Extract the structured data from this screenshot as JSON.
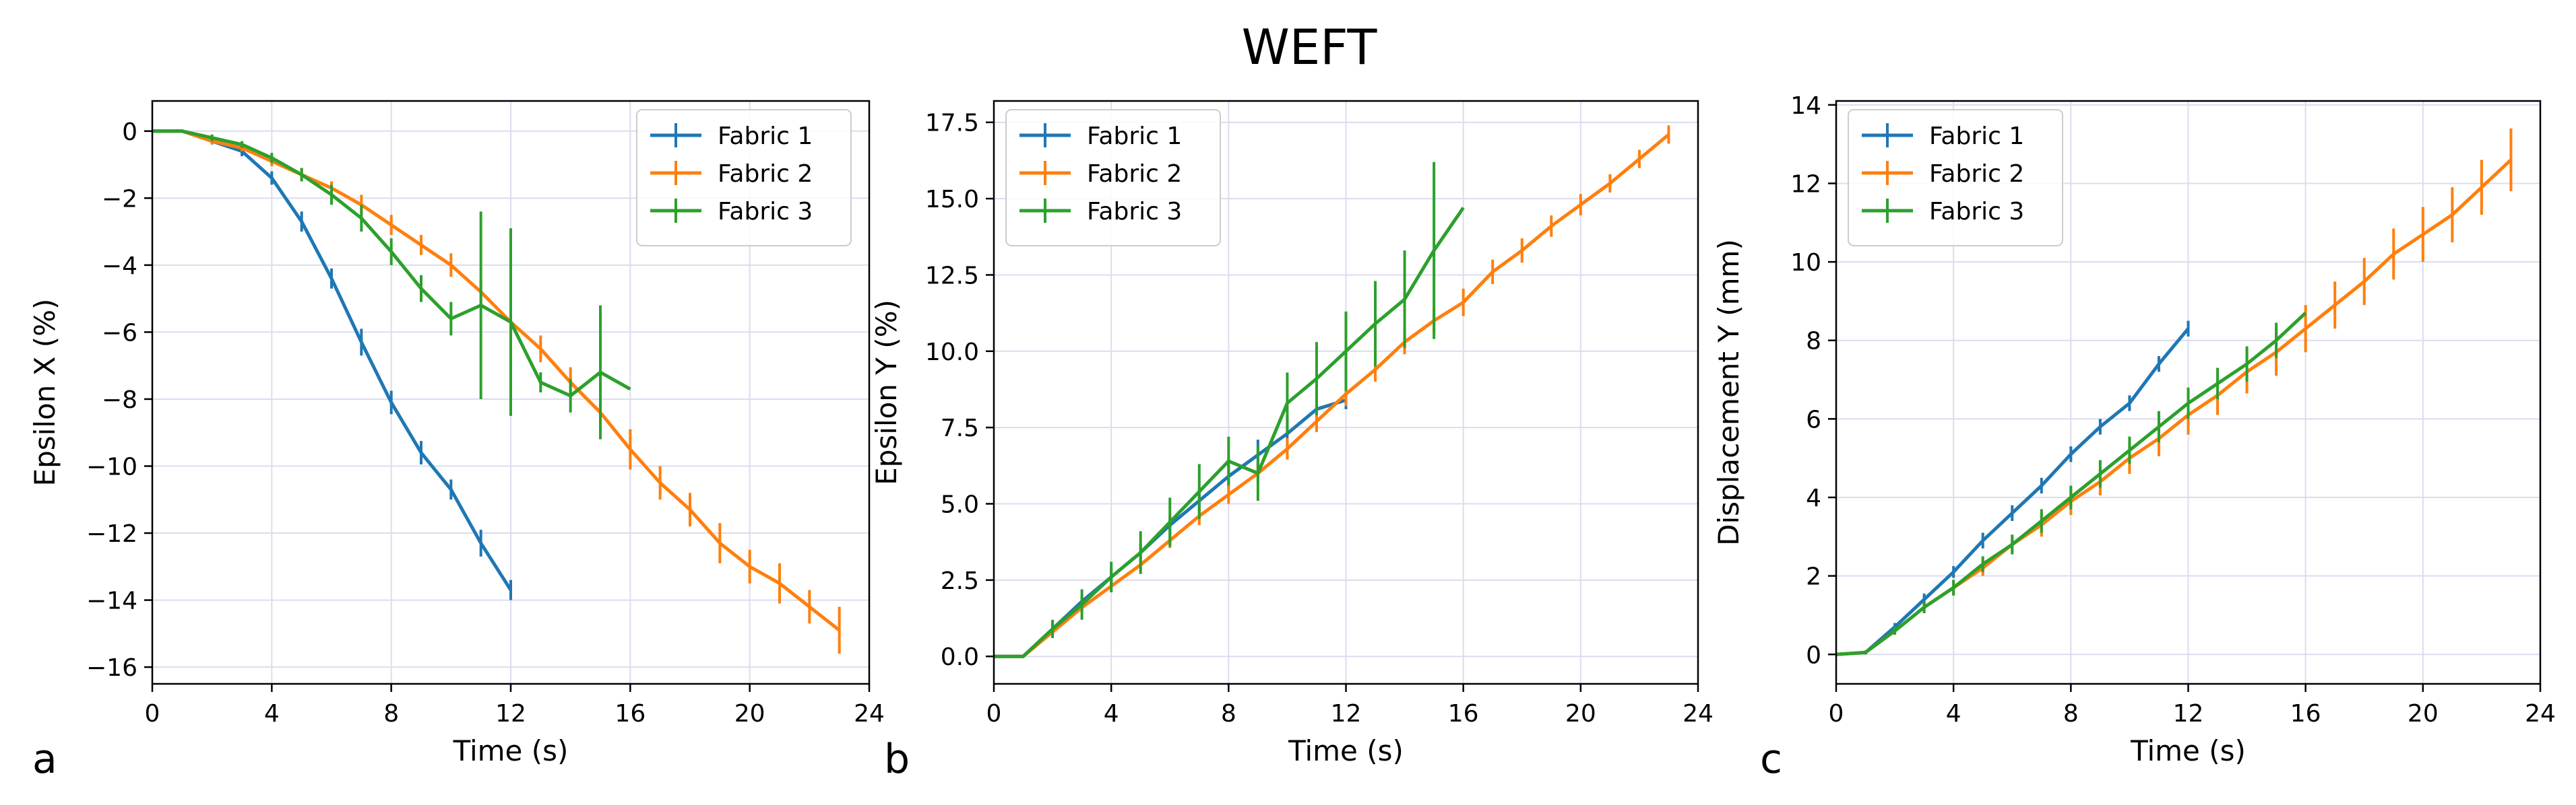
{
  "figure": {
    "title": "WEFT"
  },
  "chart_data": [
    {
      "panel_label": "a",
      "type": "line",
      "xlabel": "Time (s)",
      "ylabel": "Epsilon X (%)",
      "xlim": [
        0,
        24
      ],
      "ylim": [
        -16.5,
        0.9
      ],
      "xticks": [
        0,
        4,
        8,
        12,
        16,
        20,
        24
      ],
      "xtick_labels": [
        "0",
        "4",
        "8",
        "12",
        "16",
        "20",
        "24"
      ],
      "yticks": [
        0,
        -2,
        -4,
        -6,
        -8,
        -10,
        -12,
        -14,
        -16
      ],
      "ytick_labels": [
        "0",
        "−2",
        "−4",
        "−6",
        "−8",
        "−10",
        "−12",
        "−14",
        "−16"
      ],
      "grid": true,
      "legend_position": "top-right",
      "series": [
        {
          "name": "Fabric 1",
          "color": "#1f77b4",
          "x": [
            0,
            1,
            2,
            3,
            4,
            5,
            6,
            7,
            8,
            9,
            10,
            11,
            12
          ],
          "y": [
            0,
            0,
            -0.3,
            -0.6,
            -1.4,
            -2.7,
            -4.4,
            -6.3,
            -8.1,
            -9.6,
            -10.7,
            -12.3,
            -13.7
          ],
          "err": [
            0,
            0,
            0.1,
            0.15,
            0.2,
            0.3,
            0.3,
            0.4,
            0.35,
            0.35,
            0.3,
            0.4,
            0.3
          ]
        },
        {
          "name": "Fabric 2",
          "color": "#ff7f0e",
          "x": [
            0,
            1,
            2,
            3,
            4,
            5,
            6,
            7,
            8,
            9,
            10,
            11,
            12,
            13,
            14,
            15,
            16,
            17,
            18,
            19,
            20,
            21,
            22,
            23
          ],
          "y": [
            0,
            0,
            -0.3,
            -0.5,
            -0.9,
            -1.3,
            -1.7,
            -2.2,
            -2.8,
            -3.4,
            -4.0,
            -4.8,
            -5.7,
            -6.5,
            -7.5,
            -8.4,
            -9.5,
            -10.5,
            -11.3,
            -12.3,
            -13.0,
            -13.5,
            -14.2,
            -14.9
          ],
          "err": [
            0,
            0,
            0.1,
            0.1,
            0.15,
            0.2,
            0.2,
            0.3,
            0.3,
            0.3,
            0.35,
            0.35,
            0.4,
            0.4,
            0.45,
            0.45,
            0.6,
            0.5,
            0.5,
            0.6,
            0.5,
            0.6,
            0.5,
            0.7
          ]
        },
        {
          "name": "Fabric 3",
          "color": "#2ca02c",
          "x": [
            0,
            1,
            2,
            3,
            4,
            5,
            6,
            7,
            8,
            9,
            10,
            11,
            12,
            13,
            14,
            15,
            16
          ],
          "y": [
            0,
            0,
            -0.2,
            -0.4,
            -0.8,
            -1.3,
            -1.9,
            -2.6,
            -3.6,
            -4.7,
            -5.6,
            -5.2,
            -5.7,
            -7.5,
            -7.9,
            -7.2,
            -7.7
          ],
          "err": [
            0,
            0,
            0.1,
            0.1,
            0.15,
            0.2,
            0.3,
            0.4,
            0.4,
            0.4,
            0.5,
            2.8,
            2.8,
            0.3,
            0.5,
            2.0,
            0
          ]
        }
      ]
    },
    {
      "panel_label": "b",
      "type": "line",
      "xlabel": "Time (s)",
      "ylabel": "Epsilon Y (%)",
      "xlim": [
        0,
        24
      ],
      "ylim": [
        -0.9,
        18.2
      ],
      "xticks": [
        0,
        4,
        8,
        12,
        16,
        20,
        24
      ],
      "xtick_labels": [
        "0",
        "4",
        "8",
        "12",
        "16",
        "20",
        "24"
      ],
      "yticks": [
        0,
        2.5,
        5,
        7.5,
        10,
        12.5,
        15,
        17.5
      ],
      "ytick_labels": [
        "0.0",
        "2.5",
        "5.0",
        "7.5",
        "10.0",
        "12.5",
        "15.0",
        "17.5"
      ],
      "grid": true,
      "legend_position": "top-left",
      "series": [
        {
          "name": "Fabric 1",
          "color": "#1f77b4",
          "x": [
            0,
            1,
            2,
            3,
            4,
            5,
            6,
            7,
            8,
            9,
            10,
            11,
            12
          ],
          "y": [
            0,
            0,
            0.9,
            1.8,
            2.6,
            3.4,
            4.3,
            5.1,
            5.9,
            6.6,
            7.3,
            8.1,
            8.4
          ],
          "err": [
            0,
            0,
            0.2,
            0.2,
            0.3,
            0.3,
            0.3,
            0.4,
            0.4,
            0.5,
            0.6,
            0.5,
            0.3
          ]
        },
        {
          "name": "Fabric 2",
          "color": "#ff7f0e",
          "x": [
            0,
            1,
            2,
            3,
            4,
            5,
            6,
            7,
            8,
            9,
            10,
            11,
            12,
            13,
            14,
            15,
            16,
            17,
            18,
            19,
            20,
            21,
            22,
            23
          ],
          "y": [
            0,
            0,
            0.8,
            1.6,
            2.3,
            3.0,
            3.8,
            4.6,
            5.3,
            6.0,
            6.8,
            7.7,
            8.6,
            9.4,
            10.3,
            11.0,
            11.6,
            12.6,
            13.3,
            14.1,
            14.8,
            15.5,
            16.3,
            17.1
          ],
          "err": [
            0,
            0,
            0.1,
            0.15,
            0.2,
            0.2,
            0.25,
            0.3,
            0.3,
            0.3,
            0.35,
            0.35,
            0.4,
            0.4,
            0.4,
            0.4,
            0.45,
            0.4,
            0.4,
            0.35,
            0.35,
            0.3,
            0.3,
            0.3
          ]
        },
        {
          "name": "Fabric 3",
          "color": "#2ca02c",
          "x": [
            0,
            1,
            2,
            3,
            4,
            5,
            6,
            7,
            8,
            9,
            10,
            11,
            12,
            13,
            14,
            15,
            16
          ],
          "y": [
            0,
            0,
            0.9,
            1.7,
            2.6,
            3.4,
            4.4,
            5.4,
            6.4,
            6.0,
            8.3,
            9.1,
            10.0,
            10.9,
            11.7,
            13.3,
            14.7
          ],
          "err": [
            0,
            0,
            0.3,
            0.5,
            0.5,
            0.7,
            0.8,
            0.9,
            0.8,
            0.9,
            1.0,
            1.2,
            1.3,
            1.4,
            1.6,
            2.9,
            0
          ]
        }
      ]
    },
    {
      "panel_label": "c",
      "type": "line",
      "xlabel": "Time (s)",
      "ylabel": "Displacement Y (mm)",
      "xlim": [
        0,
        24
      ],
      "ylim": [
        -0.75,
        14.1
      ],
      "xticks": [
        0,
        4,
        8,
        12,
        16,
        20,
        24
      ],
      "xtick_labels": [
        "0",
        "4",
        "8",
        "12",
        "16",
        "20",
        "24"
      ],
      "yticks": [
        0,
        2,
        4,
        6,
        8,
        10,
        12,
        14
      ],
      "ytick_labels": [
        "0",
        "2",
        "4",
        "6",
        "8",
        "10",
        "12",
        "14"
      ],
      "grid": true,
      "legend_position": "top-left",
      "series": [
        {
          "name": "Fabric 1",
          "color": "#1f77b4",
          "x": [
            0,
            1,
            2,
            3,
            4,
            5,
            6,
            7,
            8,
            9,
            10,
            11,
            12
          ],
          "y": [
            0,
            0.05,
            0.7,
            1.4,
            2.1,
            2.9,
            3.6,
            4.3,
            5.1,
            5.8,
            6.4,
            7.4,
            8.3
          ],
          "err": [
            0,
            0.05,
            0.1,
            0.15,
            0.15,
            0.2,
            0.2,
            0.2,
            0.2,
            0.2,
            0.2,
            0.2,
            0.2
          ]
        },
        {
          "name": "Fabric 2",
          "color": "#ff7f0e",
          "x": [
            0,
            1,
            2,
            3,
            4,
            5,
            6,
            7,
            8,
            9,
            10,
            11,
            12,
            13,
            14,
            15,
            16,
            17,
            18,
            19,
            20,
            21,
            22,
            23
          ],
          "y": [
            0,
            0.05,
            0.6,
            1.2,
            1.7,
            2.2,
            2.8,
            3.3,
            3.9,
            4.4,
            5.0,
            5.5,
            6.1,
            6.6,
            7.2,
            7.7,
            8.3,
            8.9,
            9.5,
            10.2,
            10.7,
            11.2,
            11.9,
            12.6
          ],
          "err": [
            0,
            0.05,
            0.1,
            0.15,
            0.2,
            0.2,
            0.25,
            0.3,
            0.35,
            0.35,
            0.4,
            0.45,
            0.5,
            0.5,
            0.55,
            0.6,
            0.6,
            0.6,
            0.6,
            0.65,
            0.7,
            0.7,
            0.7,
            0.8
          ]
        },
        {
          "name": "Fabric 3",
          "color": "#2ca02c",
          "x": [
            0,
            1,
            2,
            3,
            4,
            5,
            6,
            7,
            8,
            9,
            10,
            11,
            12,
            13,
            14,
            15,
            16
          ],
          "y": [
            0,
            0.05,
            0.6,
            1.2,
            1.7,
            2.3,
            2.8,
            3.4,
            4.0,
            4.6,
            5.2,
            5.8,
            6.4,
            6.9,
            7.4,
            8.0,
            8.7
          ],
          "err": [
            0,
            0.05,
            0.1,
            0.15,
            0.2,
            0.2,
            0.25,
            0.3,
            0.3,
            0.35,
            0.35,
            0.4,
            0.4,
            0.4,
            0.45,
            0.45,
            0
          ]
        }
      ]
    }
  ]
}
